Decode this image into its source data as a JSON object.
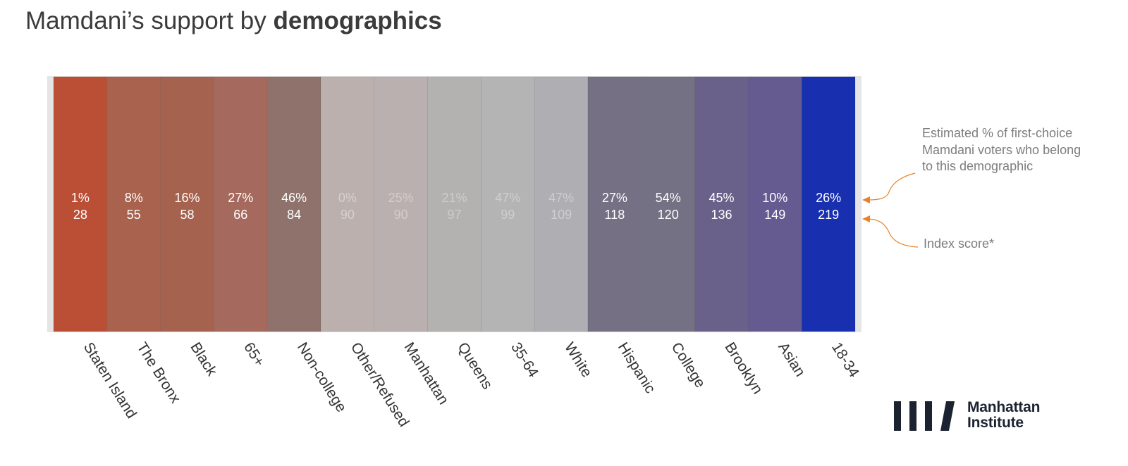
{
  "title": {
    "prefix": "Mamdani’s support by ",
    "bold": "demographics"
  },
  "annotations": {
    "share_note": "Estimated % of first-choice Mamdani voters who belong to this demographic",
    "index_note": "Index score*",
    "arrow_color": "#e8822a"
  },
  "logo": {
    "line1": "Manhattan",
    "line2": "Institute",
    "mark": "four-slash-bars-icon"
  },
  "chart_data": {
    "type": "heatmap",
    "title": "Mamdani’s support by demographics",
    "categories": [
      "Staten Island",
      "The Bronx",
      "Black",
      "65+",
      "Non-college",
      "Other/Refused",
      "Manhattan",
      "Queens",
      "35-64",
      "White",
      "Hispanic",
      "College",
      "Brooklyn",
      "Asian",
      "18-34"
    ],
    "series": [
      {
        "name": "Estimated % of first-choice Mamdani voters who belong to this demographic",
        "values": [
          "1%",
          "8%",
          "16%",
          "27%",
          "46%",
          "0%",
          "25%",
          "21%",
          "47%",
          "47%",
          "27%",
          "54%",
          "45%",
          "10%",
          "26%"
        ]
      },
      {
        "name": "Index score*",
        "values": [
          28,
          55,
          58,
          66,
          84,
          90,
          90,
          97,
          99,
          109,
          118,
          120,
          136,
          149,
          219
        ]
      }
    ],
    "colors": [
      "#bb4f35",
      "#a8624e",
      "#a5624f",
      "#a56a5d",
      "#8f726b",
      "#bbb0ae",
      "#bab0af",
      "#b3b2b0",
      "#b4b4b4",
      "#afaeb2",
      "#757084",
      "#757184",
      "#6a618b",
      "#655b90",
      "#1830b0"
    ],
    "text_colors": [
      "#ffffff",
      "#ffffff",
      "#ffffff",
      "#ffffff",
      "#ffffff",
      "#d6d0cf",
      "#d3cdcc",
      "#cfcdcc",
      "#cfcfcf",
      "#cfcdd2",
      "#ffffff",
      "#ffffff",
      "#ffffff",
      "#ffffff",
      "#ffffff"
    ],
    "grid": false,
    "legend": "right"
  }
}
